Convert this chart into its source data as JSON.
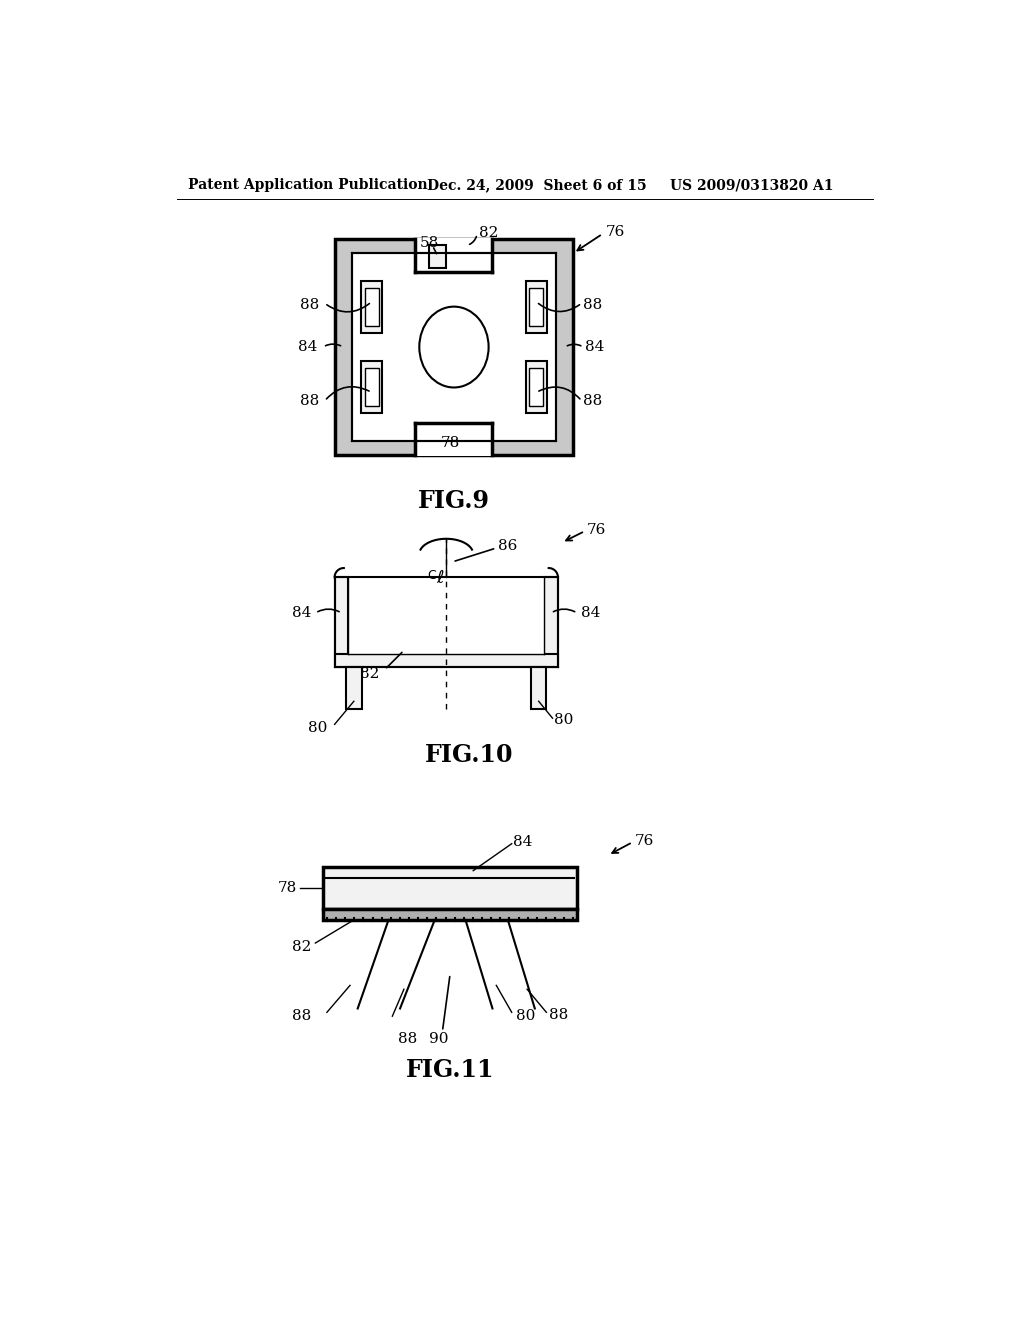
{
  "bg_color": "#ffffff",
  "line_color": "#000000",
  "header_left": "Patent Application Publication",
  "header_mid": "Dec. 24, 2009  Sheet 6 of 15",
  "header_right": "US 2009/0313820 A1",
  "fig9_label": "FIG.9",
  "fig10_label": "FIG.10",
  "fig11_label": "FIG.11",
  "gray_fill": "#c8c8c8",
  "light_fill": "#f2f2f2"
}
